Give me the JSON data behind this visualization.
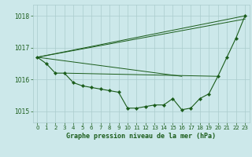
{
  "title": "Graphe pression niveau de la mer (hPa)",
  "background_color": "#cce8ea",
  "grid_color": "#aacccc",
  "line_color": "#1a5c1a",
  "marker_color": "#1a5c1a",
  "xlim": [
    -0.5,
    23.5
  ],
  "ylim": [
    1014.65,
    1018.35
  ],
  "yticks": [
    1015,
    1016,
    1017,
    1018
  ],
  "xticks": [
    0,
    1,
    2,
    3,
    4,
    5,
    6,
    7,
    8,
    9,
    10,
    11,
    12,
    13,
    14,
    15,
    16,
    17,
    18,
    19,
    20,
    21,
    22,
    23
  ],
  "lines": [
    {
      "x": [
        0,
        1,
        2,
        3,
        4,
        5,
        6,
        7,
        8,
        9,
        10,
        11,
        12,
        13,
        14,
        15,
        16,
        17,
        18,
        19,
        20,
        21,
        22,
        23
      ],
      "y": [
        1016.7,
        1016.5,
        1016.2,
        1016.2,
        1015.9,
        1015.8,
        1015.75,
        1015.7,
        1015.65,
        1015.6,
        1015.1,
        1015.1,
        1015.15,
        1015.2,
        1015.2,
        1015.4,
        1015.05,
        1015.1,
        1015.4,
        1015.55,
        1016.1,
        1016.7,
        1017.3,
        1018.0
      ],
      "has_markers": true
    },
    {
      "x": [
        0,
        23
      ],
      "y": [
        1016.7,
        1018.0
      ],
      "has_markers": false
    },
    {
      "x": [
        0,
        23
      ],
      "y": [
        1016.7,
        1017.9
      ],
      "has_markers": false
    },
    {
      "x": [
        0,
        16
      ],
      "y": [
        1016.7,
        1016.1
      ],
      "has_markers": false
    },
    {
      "x": [
        3,
        20
      ],
      "y": [
        1016.2,
        1016.1
      ],
      "has_markers": false
    }
  ]
}
